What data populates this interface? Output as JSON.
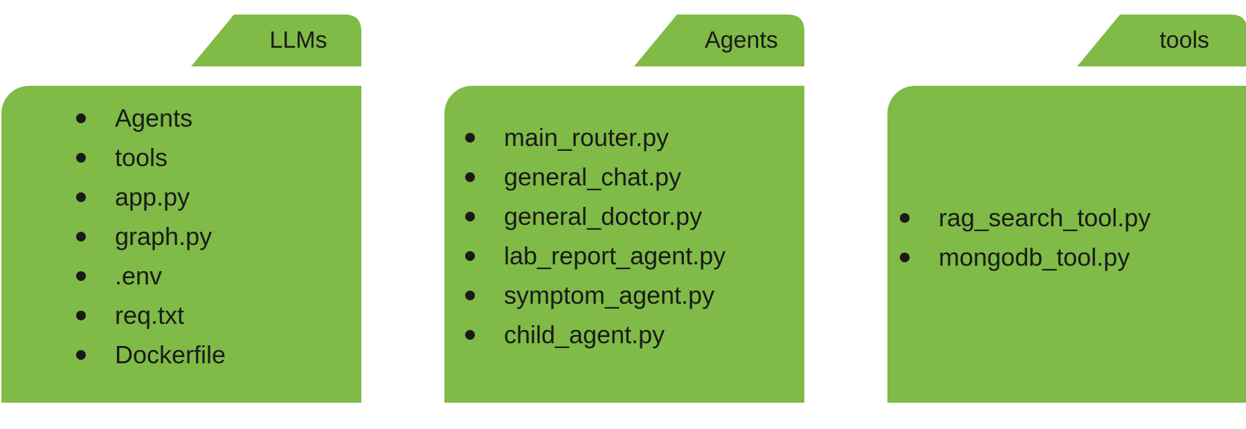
{
  "folders": [
    {
      "tab_label": "LLMs",
      "items": [
        "Agents",
        "tools",
        "app.py",
        "graph.py",
        ".env",
        "req.txt",
        "Dockerfile"
      ]
    },
    {
      "tab_label": "Agents",
      "items": [
        "main_router.py",
        "general_chat.py",
        "general_doctor.py",
        "lab_report_agent.py",
        "symptom_agent.py",
        "child_agent.py"
      ]
    },
    {
      "tab_label": "tools",
      "items": [
        "rag_search_tool.py",
        "mongodb_tool.py"
      ]
    }
  ],
  "colors": {
    "folder_fill": "#7fbb46",
    "text": "#1a1a1a",
    "background": "#ffffff"
  }
}
